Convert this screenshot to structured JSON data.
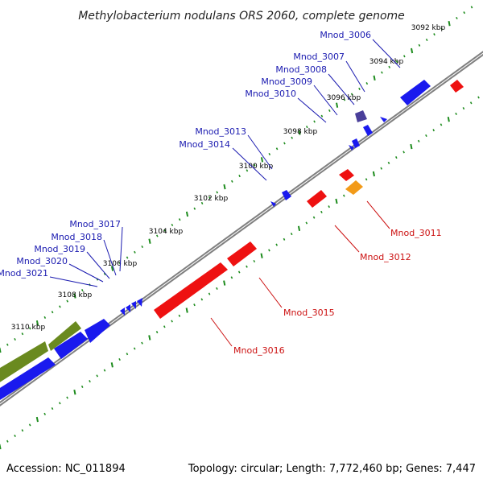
{
  "title": "Methylobacterium nodulans ORS 2060, complete genome",
  "footer": {
    "accession": "Accession: NC_011894",
    "summary": "Topology: circular; Length: 7,772,460 bp; Genes: 7,447"
  },
  "colors": {
    "forward_gene": "#1a1aee",
    "reverse_gene": "#ee1111",
    "rna_gene": "#6a8a1f",
    "pseudo_gene": "#4a3f9a",
    "misc_gene": "#f29a18",
    "backbone": "#808080",
    "tick": "#1e8c1e",
    "forward_label": "#1a1ab0",
    "reverse_label": "#cc1111"
  },
  "ticks": [
    "3092 kbp",
    "3094 kbp",
    "3096 kbp",
    "3098 kbp",
    "3100 kbp",
    "3102 kbp",
    "3104 kbp",
    "3106 kbp",
    "3108 kbp",
    "3110 kbp"
  ],
  "forward_labels": [
    "Mnod_3006",
    "Mnod_3007",
    "Mnod_3008",
    "Mnod_3009",
    "Mnod_3010",
    "Mnod_3013",
    "Mnod_3014",
    "Mnod_3017",
    "Mnod_3018",
    "Mnod_3019",
    "Mnod_3020",
    "Mnod_3021"
  ],
  "reverse_labels": [
    "Mnod_3011",
    "Mnod_3012",
    "Mnod_3015",
    "Mnod_3016"
  ]
}
